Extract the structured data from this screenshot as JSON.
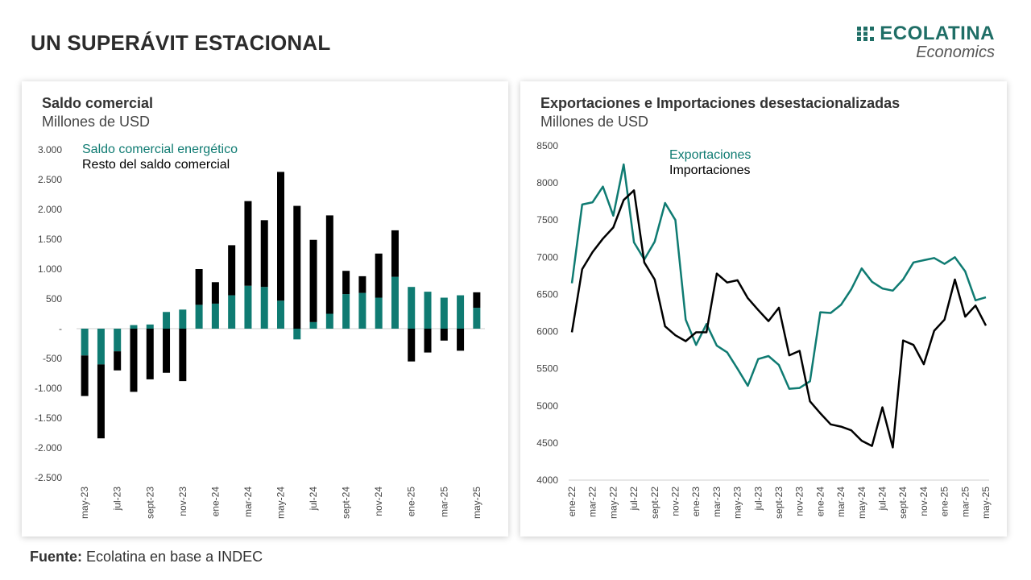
{
  "page": {
    "title": "UN SUPERÁVIT ESTACIONAL",
    "brand_name": "ECOLATINA",
    "brand_sub": "Economics",
    "source_label": "Fuente:",
    "source_text": " Ecolatina en base a INDEC"
  },
  "colors": {
    "teal": "#0f7b72",
    "black": "#000000",
    "axis": "#cfcfcf"
  },
  "chart_data": [
    {
      "type": "bar",
      "stacked": true,
      "title": "Saldo comercial",
      "subtitle": "Millones de USD",
      "legend_position": "top-left",
      "ylim": [
        -2500,
        3000
      ],
      "yticks": [
        3000,
        2500,
        2000,
        1500,
        1000,
        500,
        0,
        -500,
        -1000,
        -1500,
        -2000,
        -2500
      ],
      "ytick_labels": [
        "3.000",
        "2.500",
        "2.000",
        "1.500",
        "1.000",
        "500",
        "-",
        "-500",
        "-1.000",
        "-1.500",
        "-2.000",
        "-2.500"
      ],
      "categories": [
        "may-23",
        "jun-23",
        "jul-23",
        "ago-23",
        "sept-23",
        "oct-23",
        "nov-23",
        "dic-23",
        "ene-24",
        "feb-24",
        "mar-24",
        "abr-24",
        "may-24",
        "jun-24",
        "jul-24",
        "ago-24",
        "sept-24",
        "oct-24",
        "nov-24",
        "dic-24",
        "ene-25",
        "feb-25",
        "mar-25",
        "abr-25",
        "may-25"
      ],
      "xtick_labels": [
        "may-23",
        "",
        "jul-23",
        "",
        "sept-23",
        "",
        "nov-23",
        "",
        "ene-24",
        "",
        "mar-24",
        "",
        "may-24",
        "",
        "jul-24",
        "",
        "sept-24",
        "",
        "nov-24",
        "",
        "ene-25",
        "",
        "mar-25",
        "",
        "may-25"
      ],
      "series": [
        {
          "name": "Saldo comercial energético",
          "color": "#0f7b72",
          "values": [
            -450,
            -600,
            -380,
            60,
            70,
            280,
            320,
            400,
            420,
            560,
            720,
            700,
            470,
            -180,
            110,
            250,
            580,
            600,
            520,
            870,
            700,
            620,
            520,
            560,
            350
          ]
        },
        {
          "name": "Resto del saldo comercial",
          "color": "#000000",
          "values": [
            -680,
            -1240,
            -320,
            -1060,
            -850,
            -740,
            -880,
            600,
            360,
            840,
            1420,
            1120,
            2160,
            2060,
            1380,
            1650,
            390,
            280,
            740,
            780,
            -550,
            -400,
            -200,
            -370,
            260
          ]
        }
      ]
    },
    {
      "type": "line",
      "title": "Exportaciones e Importaciones desestacionalizadas",
      "subtitle": "Millones de USD",
      "legend_position": "top-left",
      "ylim": [
        4000,
        8500
      ],
      "yticks": [
        8500,
        8000,
        7500,
        7000,
        6500,
        6000,
        5500,
        5000,
        4500,
        4000
      ],
      "categories": [
        "ene-22",
        "feb-22",
        "mar-22",
        "abr-22",
        "may-22",
        "jun-22",
        "jul-22",
        "ago-22",
        "sept-22",
        "oct-22",
        "nov-22",
        "dic-22",
        "ene-23",
        "feb-23",
        "mar-23",
        "abr-23",
        "may-23",
        "jun-23",
        "jul-23",
        "ago-23",
        "sept-23",
        "oct-23",
        "nov-23",
        "dic-23",
        "ene-24",
        "feb-24",
        "mar-24",
        "abr-24",
        "may-24",
        "jun-24",
        "jul-24",
        "ago-24",
        "sept-24",
        "oct-24",
        "nov-24",
        "dic-24",
        "ene-25",
        "feb-25",
        "mar-25",
        "abr-25",
        "may-25"
      ],
      "xtick_labels": [
        "ene-22",
        "",
        "mar-22",
        "",
        "may-22",
        "",
        "jul-22",
        "",
        "sept-22",
        "",
        "nov-22",
        "",
        "ene-23",
        "",
        "mar-23",
        "",
        "may-23",
        "",
        "jul-23",
        "",
        "sept-23",
        "",
        "nov-23",
        "",
        "ene-24",
        "",
        "mar-24",
        "",
        "may-24",
        "",
        "jul-24",
        "",
        "sept-24",
        "",
        "nov-24",
        "",
        "ene-25",
        "",
        "mar-25",
        "",
        "may-25"
      ],
      "series": [
        {
          "name": "Exportaciones",
          "color": "#0f7b72",
          "values": [
            6650,
            7710,
            7740,
            7950,
            7560,
            8250,
            7200,
            6970,
            7210,
            7730,
            7500,
            6160,
            5820,
            6100,
            5810,
            5720,
            5500,
            5270,
            5630,
            5670,
            5550,
            5230,
            5240,
            5330,
            6260,
            6250,
            6360,
            6570,
            6850,
            6670,
            6580,
            6550,
            6700,
            6930,
            6960,
            6990,
            6910,
            7000,
            6810,
            6420,
            6460
          ]
        },
        {
          "name": "Importaciones",
          "color": "#000000",
          "values": [
            5990,
            6840,
            7070,
            7250,
            7400,
            7770,
            7900,
            6930,
            6700,
            6070,
            5950,
            5870,
            5990,
            5990,
            6780,
            6660,
            6690,
            6450,
            6290,
            6140,
            6320,
            5680,
            5740,
            5060,
            4900,
            4750,
            4720,
            4670,
            4530,
            4460,
            4980,
            4440,
            5880,
            5820,
            5560,
            6010,
            6160,
            6700,
            6200,
            6350,
            6080
          ]
        }
      ]
    }
  ]
}
